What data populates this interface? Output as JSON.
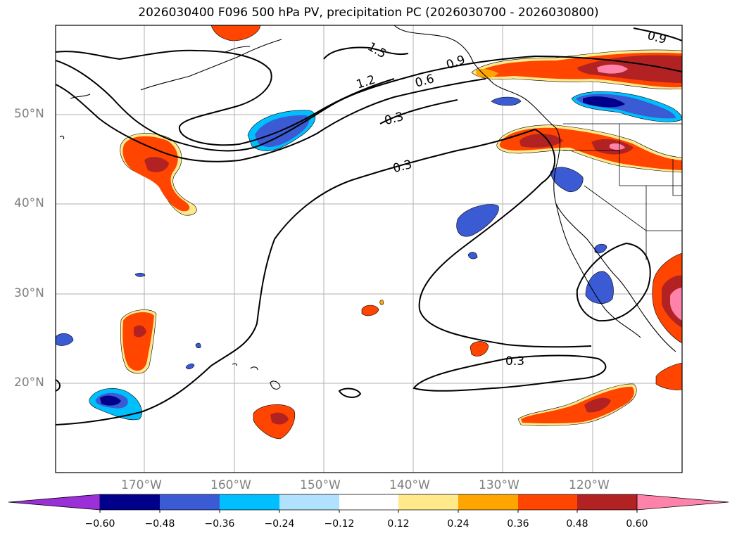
{
  "title": "2026030400 F096 500 hPa PV, precipitation PC (2026030700 - 2026030800)",
  "map": {
    "region": "North Pacific / western North America",
    "gridlines": true,
    "lat_labels": [
      "50°N",
      "40°N",
      "30°N",
      "20°N"
    ],
    "lon_labels": [
      "170°W",
      "160°W",
      "150°W",
      "140°W",
      "130°W",
      "120°W"
    ],
    "pv_contour_labels": [
      "1.5",
      "1.2",
      "0.6",
      "0.3",
      "0.3",
      "0.3",
      "0.9",
      "0.9"
    ],
    "contour_color": "#000000"
  },
  "colorbar": {
    "ticks": [
      "−0.60",
      "−0.48",
      "−0.36",
      "−0.24",
      "−0.12",
      "0.12",
      "0.24",
      "0.36",
      "0.48",
      "0.60"
    ],
    "colors": [
      "#9b30d8",
      "#00008b",
      "#3a5bd4",
      "#00bfff",
      "#b0e2ff",
      "#ffffff",
      "#ffe98a",
      "#ffa500",
      "#ff4500",
      "#b22222",
      "#ff82ab"
    ]
  }
}
